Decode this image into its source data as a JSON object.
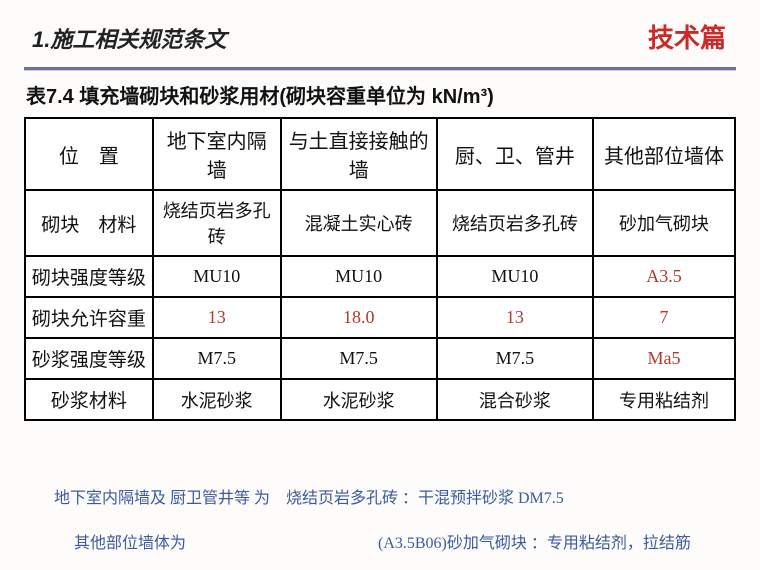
{
  "header": {
    "section_title": "1.施工相关规范条文",
    "corner_tag": "技术篇"
  },
  "table": {
    "caption": "表7.4 填充墙砌块和砂浆用材(砌块容重单位为 kN/m³)",
    "columns": [
      "位　置",
      "地下室内隔墙",
      "与土直接接触的墙",
      "厨、卫、管井",
      "其他部位墙体"
    ],
    "rows": [
      {
        "label": "砌块　材料",
        "cells": [
          "烧结页岩多孔砖",
          "混凝土实心砖",
          "烧结页岩多孔砖",
          "砂加气砌块"
        ],
        "accent": [
          false,
          false,
          false,
          false
        ]
      },
      {
        "label": "砌块强度等级",
        "cells": [
          "MU10",
          "MU10",
          "MU10",
          "A3.5"
        ],
        "accent": [
          false,
          false,
          false,
          true
        ]
      },
      {
        "label": "砌块允许容重",
        "cells": [
          "13",
          "18.0",
          "13",
          "7"
        ],
        "accent": [
          true,
          true,
          true,
          true
        ]
      },
      {
        "label": "砂浆强度等级",
        "cells": [
          "M7.5",
          "M7.5",
          "M7.5",
          "Ma5"
        ],
        "accent": [
          false,
          false,
          false,
          true
        ]
      },
      {
        "label": "砂浆材料",
        "cells": [
          "水泥砂浆",
          "水泥砂浆",
          "混合砂浆",
          "专用粘结剂"
        ],
        "accent": [
          false,
          false,
          false,
          false
        ]
      }
    ],
    "border_color": "#000000",
    "accent_color": "#b03a2e"
  },
  "notes": {
    "line1": "地下室内隔墙及 厨卫管井等 为　烧结页岩多孔砖 ：干混预拌砂浆 DM7.5",
    "line2": "其他部位墙体为　　　　　　　　　　　　(A3.5B06)砂加气砌块 ：专用粘结剂，拉结筋"
  },
  "colors": {
    "background": "#fdfcfb",
    "divider": "#6f6f9f",
    "corner_tag": "#c92a2a",
    "note_text": "#3b5aa0"
  }
}
